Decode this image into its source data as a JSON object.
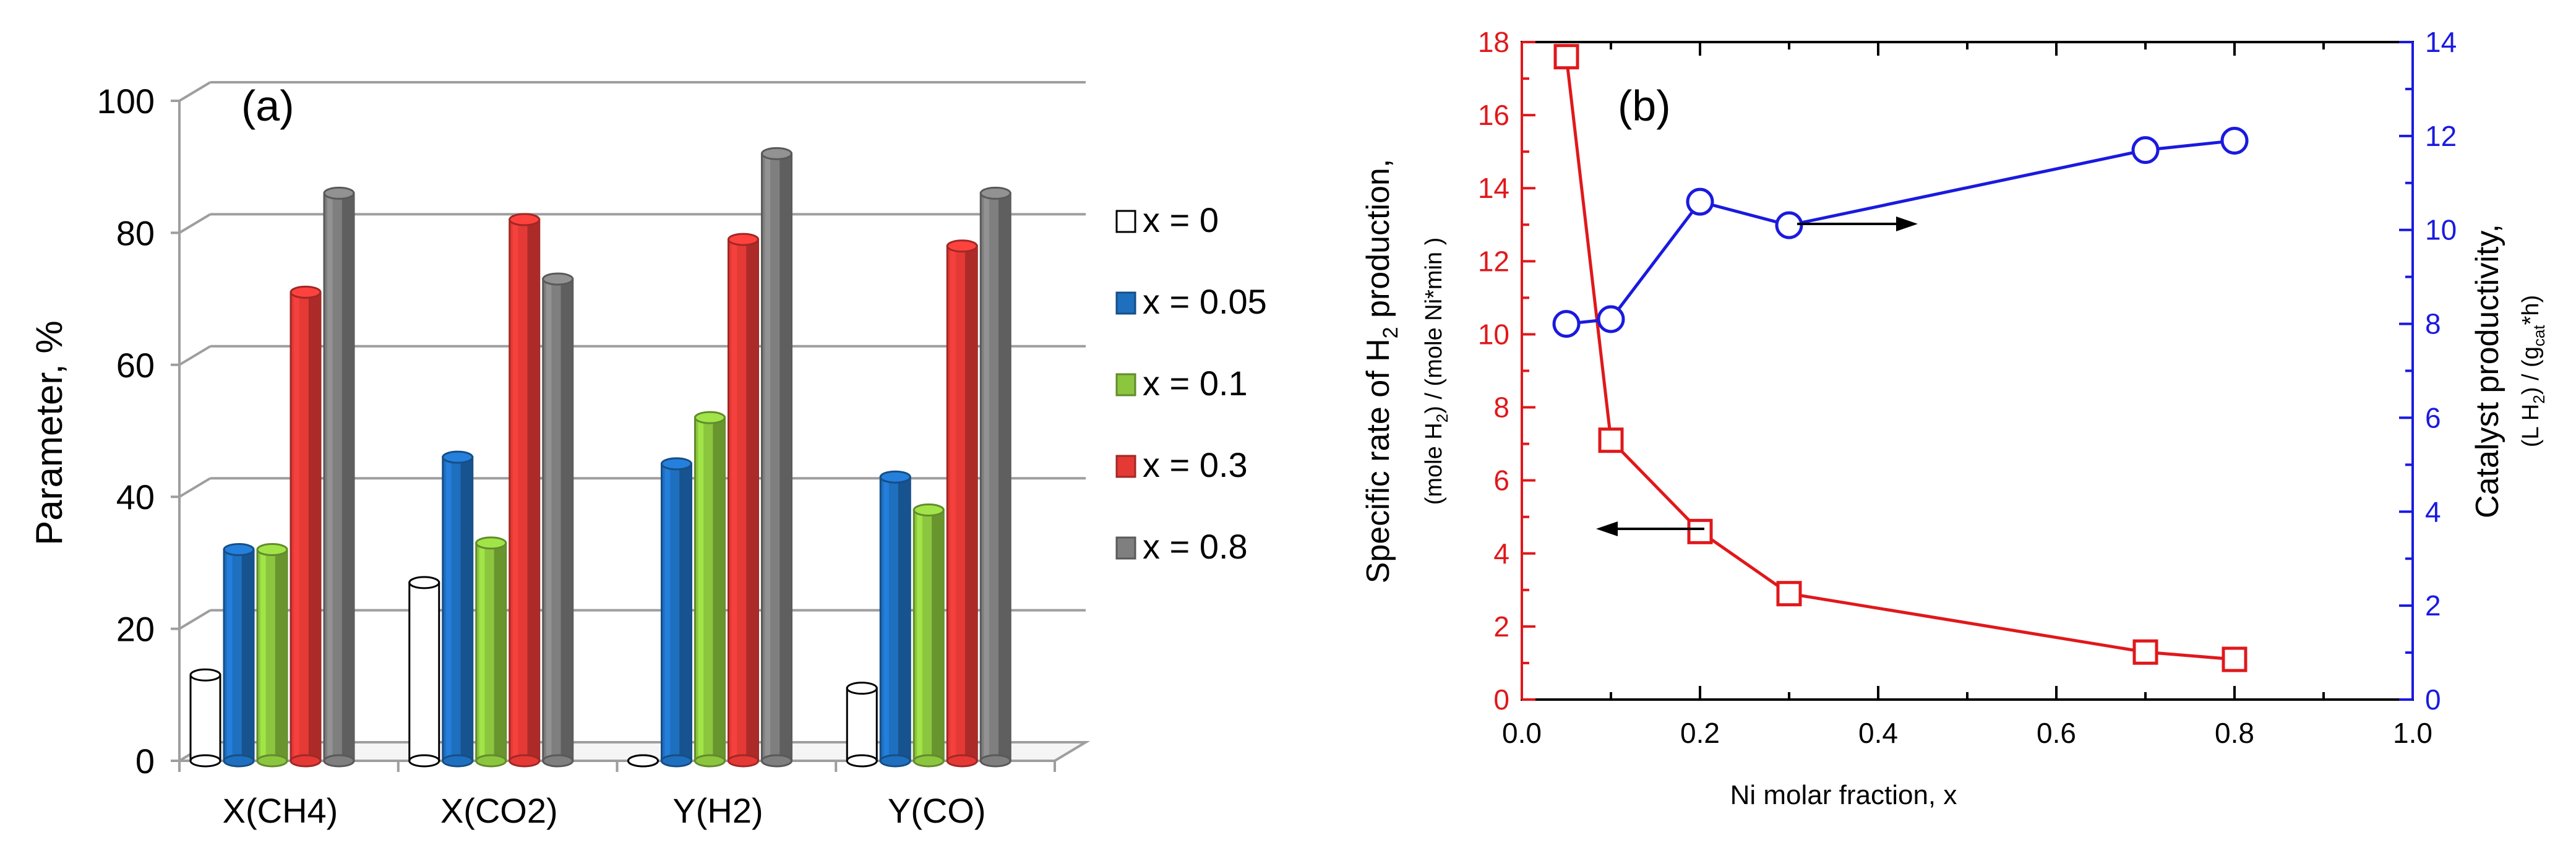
{
  "chart_data": [
    {
      "type": "bar",
      "panel_label": "(a)",
      "ylabel": "Parameter,   %",
      "ylim": [
        0,
        100
      ],
      "yticks": [
        0,
        20,
        40,
        60,
        80,
        100
      ],
      "categories": [
        "X(CH4)",
        "X(CO2)",
        "Y(H2)",
        "Y(CO)"
      ],
      "series": [
        {
          "name": "x = 0",
          "color": "#ffffff",
          "values": [
            13,
            27,
            0,
            11
          ]
        },
        {
          "name": "x = 0.05",
          "color": "#1f6fbf",
          "values": [
            32,
            46,
            45,
            43
          ]
        },
        {
          "name": "x = 0.1",
          "color": "#8cc63f",
          "values": [
            32,
            33,
            52,
            38
          ]
        },
        {
          "name": "x = 0.3",
          "color": "#e53935",
          "values": [
            71,
            82,
            79,
            78
          ]
        },
        {
          "name": "x = 0.8",
          "color": "#7f7f7f",
          "values": [
            86,
            73,
            92,
            86
          ]
        }
      ],
      "legend_position": "right"
    },
    {
      "type": "line",
      "panel_label": "(b)",
      "xlabel": "Ni molar fraction, x",
      "xlim": [
        0.0,
        1.0
      ],
      "xticks": [
        "0.0",
        "0.2",
        "0.4",
        "0.6",
        "0.8",
        "1.0"
      ],
      "ylabel_left": {
        "main": "Specific rate of H",
        "sub": "2",
        "end": " production,",
        "units_a": "(mole H",
        "units_b": "2",
        "units_c": ")  /   (mole Ni*min )"
      },
      "ylim_left": [
        0,
        18
      ],
      "yticks_left": [
        "0",
        "2",
        "4",
        "6",
        "8",
        "10",
        "12",
        "14",
        "16",
        "18"
      ],
      "ylabel_right": {
        "main": "Catalyst productivity,",
        "units_a": "(L H",
        "units_b": "2",
        "units_c": ")  /  (g",
        "units_d": "cat",
        "units_e": "*h)"
      },
      "ylim_right": [
        0,
        14
      ],
      "yticks_right": [
        "0",
        "2",
        "4",
        "6",
        "8",
        "10",
        "12",
        "14"
      ],
      "series": [
        {
          "name": "Specific rate of H2 production",
          "axis": "left",
          "color": "#e0181b",
          "marker": "square",
          "x": [
            0.05,
            0.1,
            0.2,
            0.3,
            0.7,
            0.8
          ],
          "y": [
            17.6,
            7.1,
            4.6,
            2.9,
            1.3,
            1.1
          ]
        },
        {
          "name": "Catalyst productivity",
          "axis": "right",
          "color": "#1a1adf",
          "marker": "circle",
          "x": [
            0.05,
            0.1,
            0.2,
            0.3,
            0.7,
            0.8
          ],
          "y": [
            8.0,
            8.1,
            10.6,
            10.1,
            11.7,
            11.9
          ]
        }
      ],
      "annotations": [
        "arrow pointing left toward red series (left axis)",
        "arrow pointing right toward blue series (right axis)"
      ]
    }
  ]
}
